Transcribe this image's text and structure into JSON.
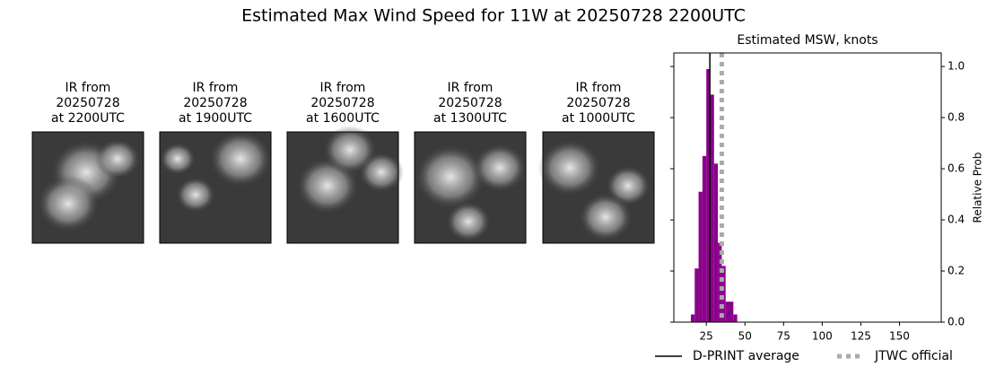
{
  "title": "Estimated Max Wind Speed for 11W at 20250728 2200UTC",
  "panels": [
    {
      "lines": [
        "IR from",
        "20250728",
        "at 2200UTC"
      ]
    },
    {
      "lines": [
        "IR from",
        "20250728",
        "at 1900UTC"
      ]
    },
    {
      "lines": [
        "IR from",
        "20250728",
        "at 1600UTC"
      ]
    },
    {
      "lines": [
        "IR from",
        "20250728",
        "at 1300UTC"
      ]
    },
    {
      "lines": [
        "IR from",
        "20250728",
        "at 1000UTC"
      ]
    }
  ],
  "chart_data": {
    "type": "histogram",
    "title": "Estimated MSW, knots",
    "y_label": "Relative Prob",
    "bins": [
      15,
      17.5,
      20,
      22.5,
      25,
      27.5,
      30,
      32.5,
      35,
      37.5,
      40,
      42.5,
      45
    ],
    "values": [
      0.03,
      0.21,
      0.51,
      0.65,
      0.99,
      0.89,
      0.62,
      0.31,
      0.22,
      0.08,
      0.08,
      0.03
    ],
    "color": "#8b008b",
    "vlines": [
      {
        "name": "D-PRINT average",
        "value": 27.3,
        "color": "#000000",
        "style": "solid"
      },
      {
        "name": "JTWC official",
        "value": 35,
        "color": "#aaaaaa",
        "style": "dotted"
      }
    ],
    "xlim": [
      4,
      177
    ],
    "xticks": [
      25,
      50,
      75,
      100,
      125,
      150
    ],
    "ylim": [
      0,
      1.053
    ],
    "yticks": [
      {
        "value": 0,
        "label": "0.0"
      },
      0.2,
      0.4,
      0.6,
      0.8,
      {
        "value": 1,
        "label": "1.0"
      }
    ]
  }
}
